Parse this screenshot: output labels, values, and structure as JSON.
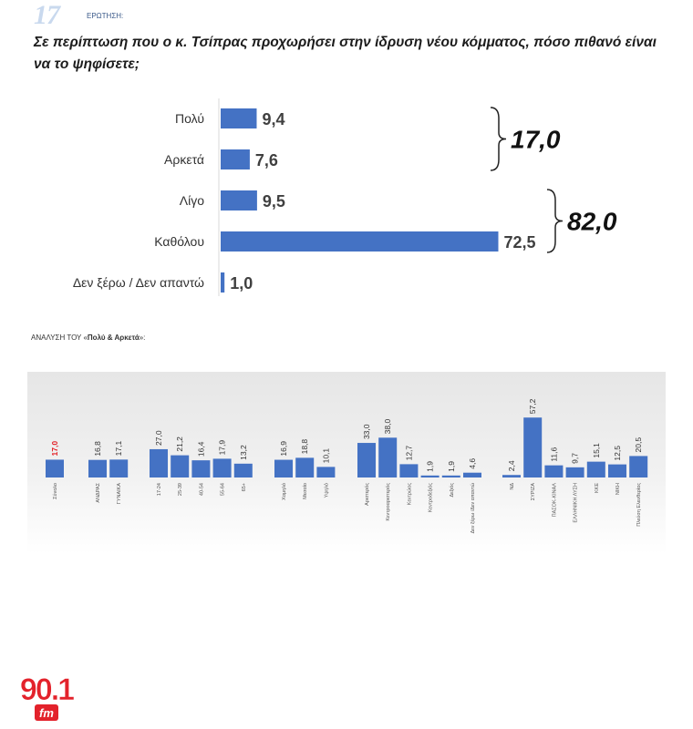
{
  "header": {
    "question_number": "17",
    "question_label": "ΕΡΩΤΗΣΗ:",
    "question_text": "Σε περίπτωση που ο κ. Τσίπρας προχωρήσει στην ίδρυση νέου κόμματος, πόσο πιθανό είναι να το ψηφίσετε;"
  },
  "breakdown_title": {
    "prefix": "ΑΝΑΛΥΣΗ ΤΟΥ «",
    "bold": "Πολύ & Αρκετά",
    "suffix": "»:"
  },
  "logo": {
    "number": "90.1",
    "sub": "fm",
    "color": "#e3222b"
  },
  "colors": {
    "bar": "#4472c4",
    "highlight_label": "#e31f26"
  },
  "chart_data": [
    {
      "type": "bar",
      "orientation": "horizontal",
      "categories": [
        "Πολύ",
        "Αρκετά",
        "Λίγο",
        "Καθόλου",
        "Δεν ξέρω / Δεν απαντώ"
      ],
      "values": [
        9.4,
        7.6,
        9.5,
        72.5,
        1.0
      ],
      "value_labels": [
        "9,4",
        "7,6",
        "9,5",
        "72,5",
        "1,0"
      ],
      "group_totals": [
        {
          "categories": [
            "Πολύ",
            "Αρκετά"
          ],
          "label": "17,0"
        },
        {
          "categories": [
            "Λίγο",
            "Καθόλου"
          ],
          "label": "82,0"
        }
      ]
    },
    {
      "type": "bar",
      "categories": [
        "Σύνολο",
        "ΑΝΔΡΑΣ",
        "ΓΥΝΑΙΚΑ",
        "17-24",
        "25-39",
        "40-54",
        "55-64",
        "65+",
        "Χαμηλό",
        "Μεσαίο",
        "Υψηλό",
        "Αριστερός",
        "Κεντροαριστερός",
        "Κεντρώος",
        "Κεντροδεξιός",
        "Δεξιός",
        "Δεν ξέρω /Δεν απαντώ",
        "ΝΔ",
        "ΣΥΡΙΖΑ",
        "ΠΑΣΟΚ-ΚΙΝΑΛ",
        "ΕΛΛΗΝΙΚΗ ΛΥΣΗ",
        "ΚΚΕ",
        "ΝΙΚΗ",
        "Πλεύση Ελευθερίας"
      ],
      "values": [
        17.0,
        16.8,
        17.1,
        27.0,
        21.2,
        16.4,
        17.9,
        13.2,
        16.9,
        18.8,
        10.1,
        33.0,
        38.0,
        12.7,
        1.9,
        1.9,
        4.6,
        2.4,
        57.2,
        11.6,
        9.7,
        15.1,
        12.5,
        20.5
      ],
      "value_labels": [
        "17,0",
        "16,8",
        "17,1",
        "27,0",
        "21,2",
        "16,4",
        "17,9",
        "13,2",
        "16,9",
        "18,8",
        "10,1",
        "33,0",
        "38,0",
        "12,7",
        "1,9",
        "1,9",
        "4,6",
        "2,4",
        "57,2",
        "11,6",
        "9,7",
        "15,1",
        "12,5",
        "20,5"
      ],
      "highlight_index": 0
    }
  ]
}
